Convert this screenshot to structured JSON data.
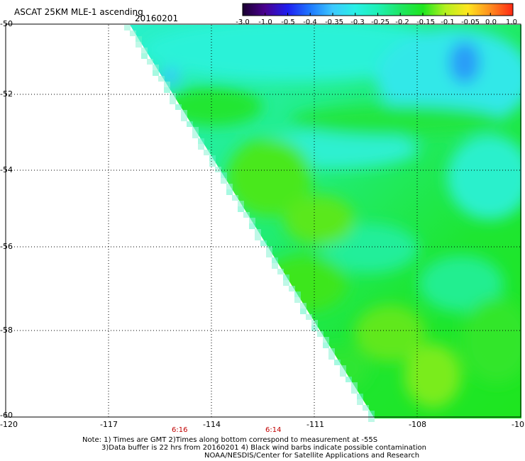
{
  "header": {
    "title": "ASCAT 25KM MLE-1 ascending",
    "date": "20160201"
  },
  "colorbar": {
    "labels": [
      "-3.0",
      "-1.0",
      "-0.5",
      "-0.4",
      "-0.35",
      "-0.3",
      "-0.25",
      "-0.2",
      "-0.15",
      "-0.1",
      "-0.05",
      "0.0",
      "1.0"
    ],
    "colors": [
      "#1a0030",
      "#4a0090",
      "#1e1ef0",
      "#1e78ff",
      "#3cc8ff",
      "#28f0e6",
      "#1ef0b4",
      "#1ee664",
      "#1ee61e",
      "#b4f01e",
      "#ffe61e",
      "#ff8c1e",
      "#ff2814"
    ]
  },
  "axes": {
    "lat_labels": [
      "-50",
      "-52",
      "-54",
      "-56",
      "-58",
      "-60"
    ],
    "lon_labels": [
      "-120",
      "-117",
      "-114",
      "-111",
      "-108",
      "-10"
    ]
  },
  "times": [
    "6:16",
    "6:14"
  ],
  "notes": {
    "line1": "Note: 1) Times are GMT 2)Times along bottom correspond to measurement at -55S",
    "line2": "3)Data buffer is 22 hrs from 20160201 4) Black wind barbs indicate possible contamination",
    "line3": "NOAA/NESDIS/Center for Satellite Applications and Research"
  }
}
